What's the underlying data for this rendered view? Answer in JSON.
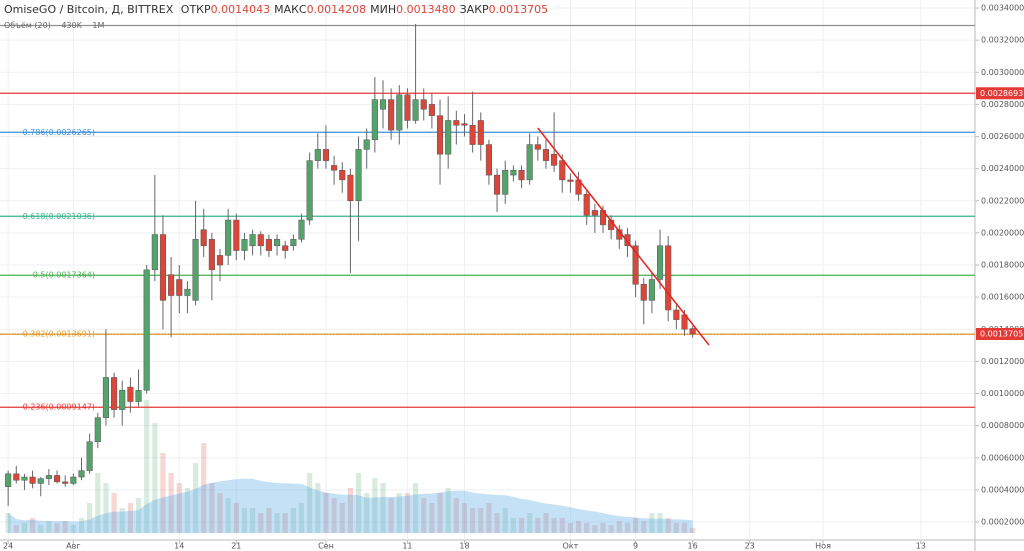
{
  "chart_data": {
    "type": "candlestick",
    "title": "OmiseGO / Bitcoin, Д, BITTREX",
    "header_values": [
      {
        "name": "ОТКР",
        "value": 0.0014043,
        "label": "0.0014043"
      },
      {
        "name": "МАКС",
        "value": 0.0014208,
        "label": "0.0014208"
      },
      {
        "name": "МИН",
        "value": 0.001348,
        "label": "0.0013480"
      },
      {
        "name": "ЗАКР",
        "value": 0.0013705,
        "label": "0.0013705"
      }
    ],
    "volume_title": "Объём (20)",
    "volume_legend": [
      "430K",
      "1M"
    ],
    "up_color": "#53a36b",
    "down_color": "#d9463a",
    "x": [
      0,
      1,
      2,
      3,
      4,
      5,
      6,
      7,
      8,
      9,
      10,
      11,
      12,
      13,
      14,
      15,
      16,
      17,
      18,
      19,
      20,
      21,
      22,
      23,
      24,
      25,
      26,
      27,
      28,
      29,
      30,
      31,
      32,
      33,
      34,
      35,
      36,
      37,
      38,
      39,
      40,
      41,
      42,
      43,
      44,
      45,
      46,
      47,
      48,
      49,
      50,
      51,
      52,
      53,
      54,
      55,
      56,
      57,
      58,
      59,
      60,
      61,
      62,
      63,
      64,
      65,
      66,
      67,
      68,
      69,
      70,
      71,
      72,
      73,
      74,
      75,
      76,
      77,
      78,
      79,
      80,
      81,
      82,
      83,
      84
    ],
    "open": [
      0.00042,
      0.0005,
      0.00046,
      0.00048,
      0.00044,
      0.00047,
      0.00049,
      0.00045,
      0.00044,
      0.00048,
      0.00052,
      0.0007,
      0.00085,
      0.0011,
      0.0009,
      0.00104,
      0.00095,
      0.00102,
      0.00177,
      0.00199,
      0.00174,
      0.00171,
      0.00161,
      0.00158,
      0.00202,
      0.00196,
      0.00186,
      0.00186,
      0.00208,
      0.00189,
      0.00192,
      0.00199,
      0.00196,
      0.00192,
      0.00192,
      0.00192,
      0.00196,
      0.00208,
      0.00245,
      0.00252,
      0.00242,
      0.00239,
      0.00236,
      0.0022,
      0.00252,
      0.00258,
      0.00277,
      0.00283,
      0.00264,
      0.00286,
      0.0027,
      0.00283,
      0.0028,
      0.00273,
      0.00249,
      0.0027,
      0.00268,
      0.00267,
      0.0027,
      0.00255,
      0.00236,
      0.00224,
      0.00236,
      0.00239,
      0.00233,
      0.00255,
      0.00252,
      0.00249,
      0.00245,
      0.00233,
      0.00233,
      0.00224,
      0.00214,
      0.00214,
      0.00208,
      0.00202,
      0.00199,
      0.00192,
      0.00168,
      0.00158,
      0.00171,
      0.00192,
      0.00152,
      0.00149,
      0.0014043
    ],
    "high": [
      0.00052,
      0.00055,
      0.0005,
      0.00052,
      0.00048,
      0.00053,
      0.00052,
      0.00049,
      0.0005,
      0.0006,
      0.00075,
      0.00088,
      0.0014,
      0.00113,
      0.00108,
      0.0011,
      0.00115,
      0.0018,
      0.00236,
      0.00211,
      0.00185,
      0.0018,
      0.0017,
      0.0022,
      0.00215,
      0.002,
      0.0019,
      0.00215,
      0.00212,
      0.002,
      0.00202,
      0.00201,
      0.00199,
      0.00199,
      0.00195,
      0.00199,
      0.00212,
      0.0025,
      0.00262,
      0.00267,
      0.00248,
      0.00244,
      0.0024,
      0.0026,
      0.00265,
      0.00297,
      0.00295,
      0.0029,
      0.00292,
      0.0029,
      0.0033,
      0.0029,
      0.00287,
      0.00283,
      0.00285,
      0.00276,
      0.00274,
      0.00288,
      0.00275,
      0.00258,
      0.0024,
      0.00245,
      0.00242,
      0.00242,
      0.00262,
      0.0026,
      0.00258,
      0.00275,
      0.00249,
      0.00237,
      0.00238,
      0.00226,
      0.00218,
      0.00217,
      0.00211,
      0.00205,
      0.00203,
      0.00195,
      0.00172,
      0.00175,
      0.00202,
      0.00198,
      0.00155,
      0.00152,
      0.0014208
    ],
    "low": [
      0.0003,
      0.00044,
      0.0004,
      0.00041,
      0.00036,
      0.00043,
      0.00044,
      0.00042,
      0.00043,
      0.00046,
      0.0005,
      0.00066,
      0.0008,
      0.00085,
      0.0008,
      0.00088,
      0.00092,
      0.001,
      0.0017,
      0.0014,
      0.00135,
      0.0015,
      0.0015,
      0.00155,
      0.00185,
      0.00158,
      0.0017,
      0.0018,
      0.00183,
      0.00183,
      0.00186,
      0.00186,
      0.00185,
      0.00186,
      0.00184,
      0.00189,
      0.00194,
      0.00205,
      0.0024,
      0.0024,
      0.0023,
      0.00225,
      0.00175,
      0.00195,
      0.0024,
      0.0025,
      0.00265,
      0.00258,
      0.00255,
      0.00265,
      0.00268,
      0.0027,
      0.00265,
      0.0023,
      0.0024,
      0.00255,
      0.0026,
      0.0025,
      0.00245,
      0.0023,
      0.00213,
      0.00218,
      0.00232,
      0.00228,
      0.0023,
      0.00245,
      0.0024,
      0.00238,
      0.00225,
      0.00225,
      0.0022,
      0.00205,
      0.002,
      0.002,
      0.00196,
      0.0019,
      0.00185,
      0.0016,
      0.00143,
      0.0015,
      0.00165,
      0.00145,
      0.0014,
      0.00136,
      0.001348
    ],
    "close": [
      0.0005,
      0.00046,
      0.00048,
      0.00044,
      0.00047,
      0.00049,
      0.00045,
      0.00044,
      0.00048,
      0.00052,
      0.0007,
      0.00085,
      0.0011,
      0.0009,
      0.00102,
      0.00095,
      0.00102,
      0.00177,
      0.00199,
      0.00158,
      0.00161,
      0.00161,
      0.00165,
      0.00196,
      0.00192,
      0.00177,
      0.0018,
      0.00208,
      0.00189,
      0.00196,
      0.00199,
      0.00192,
      0.00189,
      0.00196,
      0.00189,
      0.00196,
      0.00208,
      0.00245,
      0.00252,
      0.00245,
      0.00239,
      0.00233,
      0.0022,
      0.00252,
      0.00258,
      0.00283,
      0.00283,
      0.00264,
      0.00286,
      0.0027,
      0.00283,
      0.00277,
      0.00273,
      0.00249,
      0.0027,
      0.00267,
      0.00267,
      0.00255,
      0.00255,
      0.00236,
      0.00224,
      0.00239,
      0.00239,
      0.00233,
      0.00255,
      0.00252,
      0.00245,
      0.00242,
      0.00233,
      0.00232,
      0.00224,
      0.00211,
      0.00211,
      0.00205,
      0.00202,
      0.00196,
      0.00192,
      0.00168,
      0.00158,
      0.00171,
      0.00192,
      0.00152,
      0.00146,
      0.0014,
      0.0013705
    ],
    "volume": [
      1600000,
      640000,
      800000,
      1200000,
      640000,
      960000,
      800000,
      960000,
      640000,
      1200000,
      2400000,
      4800000,
      4000000,
      3200000,
      2000000,
      2400000,
      2800000,
      10640000,
      8800000,
      6400000,
      4800000,
      4000000,
      3600000,
      5600000,
      7200000,
      4000000,
      3200000,
      2800000,
      2400000,
      2000000,
      2000000,
      1600000,
      2000000,
      1600000,
      1600000,
      2000000,
      2400000,
      4800000,
      4000000,
      3200000,
      2800000,
      2400000,
      3600000,
      4800000,
      3200000,
      4400000,
      4000000,
      2800000,
      3200000,
      3200000,
      4000000,
      2800000,
      2400000,
      3200000,
      3600000,
      2800000,
      2400000,
      2000000,
      2000000,
      2400000,
      1600000,
      2000000,
      1200000,
      1200000,
      1600000,
      1200000,
      1600000,
      1200000,
      1200000,
      800000,
      960000,
      800000,
      640000,
      800000,
      640000,
      960000,
      800000,
      1200000,
      960000,
      1600000,
      1600000,
      1200000,
      800000,
      800000,
      430000
    ],
    "volume_ylim": [
      0,
      12000000
    ],
    "xlim": [
      -1,
      118.65
    ],
    "xticks": [
      {
        "value": 0,
        "label": "24"
      },
      {
        "value": 8,
        "label": "Авг"
      },
      {
        "value": 21,
        "label": "14"
      },
      {
        "value": 28,
        "label": "21"
      },
      {
        "value": 39,
        "label": "Сен"
      },
      {
        "value": 49,
        "label": "11"
      },
      {
        "value": 56,
        "label": "18"
      },
      {
        "value": 69,
        "label": "Окт"
      },
      {
        "value": 77,
        "label": "9"
      },
      {
        "value": 84,
        "label": "16"
      },
      {
        "value": 91,
        "label": "23"
      },
      {
        "value": 100,
        "label": "Ноя"
      },
      {
        "value": 112,
        "label": "13"
      }
    ],
    "ylim": [
      8.8e-05,
      0.00345
    ],
    "yticks": [
      {
        "value": 0.0002,
        "label": "0.0002000"
      },
      {
        "value": 0.0004,
        "label": "0.0004000"
      },
      {
        "value": 0.0006,
        "label": "0.0006000"
      },
      {
        "value": 0.0008,
        "label": "0.0008000"
      },
      {
        "value": 0.001,
        "label": "0.0010000"
      },
      {
        "value": 0.0012,
        "label": "0.0012000"
      },
      {
        "value": 0.0014,
        "label": "0.0014000"
      },
      {
        "value": 0.0016,
        "label": "0.0016000"
      },
      {
        "value": 0.0018,
        "label": "0.0018000"
      },
      {
        "value": 0.002,
        "label": "0.0020000"
      },
      {
        "value": 0.0022,
        "label": "0.0022000"
      },
      {
        "value": 0.0024,
        "label": "0.0024000"
      },
      {
        "value": 0.0026,
        "label": "0.0026000"
      },
      {
        "value": 0.0028,
        "label": "0.0028000"
      },
      {
        "value": 0.003,
        "label": "0.0030000"
      },
      {
        "value": 0.0032,
        "label": "0.0032000"
      },
      {
        "value": 0.0034,
        "label": "0.0034000"
      }
    ],
    "grid": true,
    "levels": [
      {
        "value": 0.00329126,
        "color": "#909090"
      },
      {
        "value": 0.0028693,
        "color": "#e53935"
      },
      {
        "value": 0.0026265,
        "label": "0.786(0.0026265)",
        "color": "#3d8fd6"
      },
      {
        "value": 0.0021036,
        "label": "0.618(0.0021036)",
        "color": "#3bb38f"
      },
      {
        "value": 0.0017364,
        "label": "0.5(0.0017364)",
        "color": "#4caf50"
      },
      {
        "value": 0.0013691,
        "label": "0.382(0.0013691)",
        "color": "#e0a030"
      },
      {
        "value": 0.0009147,
        "label": "0.236(0.0009147)",
        "color": "#e53935"
      }
    ],
    "axis_markers": [
      {
        "value": 0.0028693,
        "color": "#e53935"
      },
      {
        "value": 0.0013705,
        "color": "#e53935"
      }
    ],
    "trendline": {
      "x": [
        65,
        86
      ],
      "y": [
        0.002653,
        0.001302
      ],
      "color": "#e8231f"
    }
  }
}
